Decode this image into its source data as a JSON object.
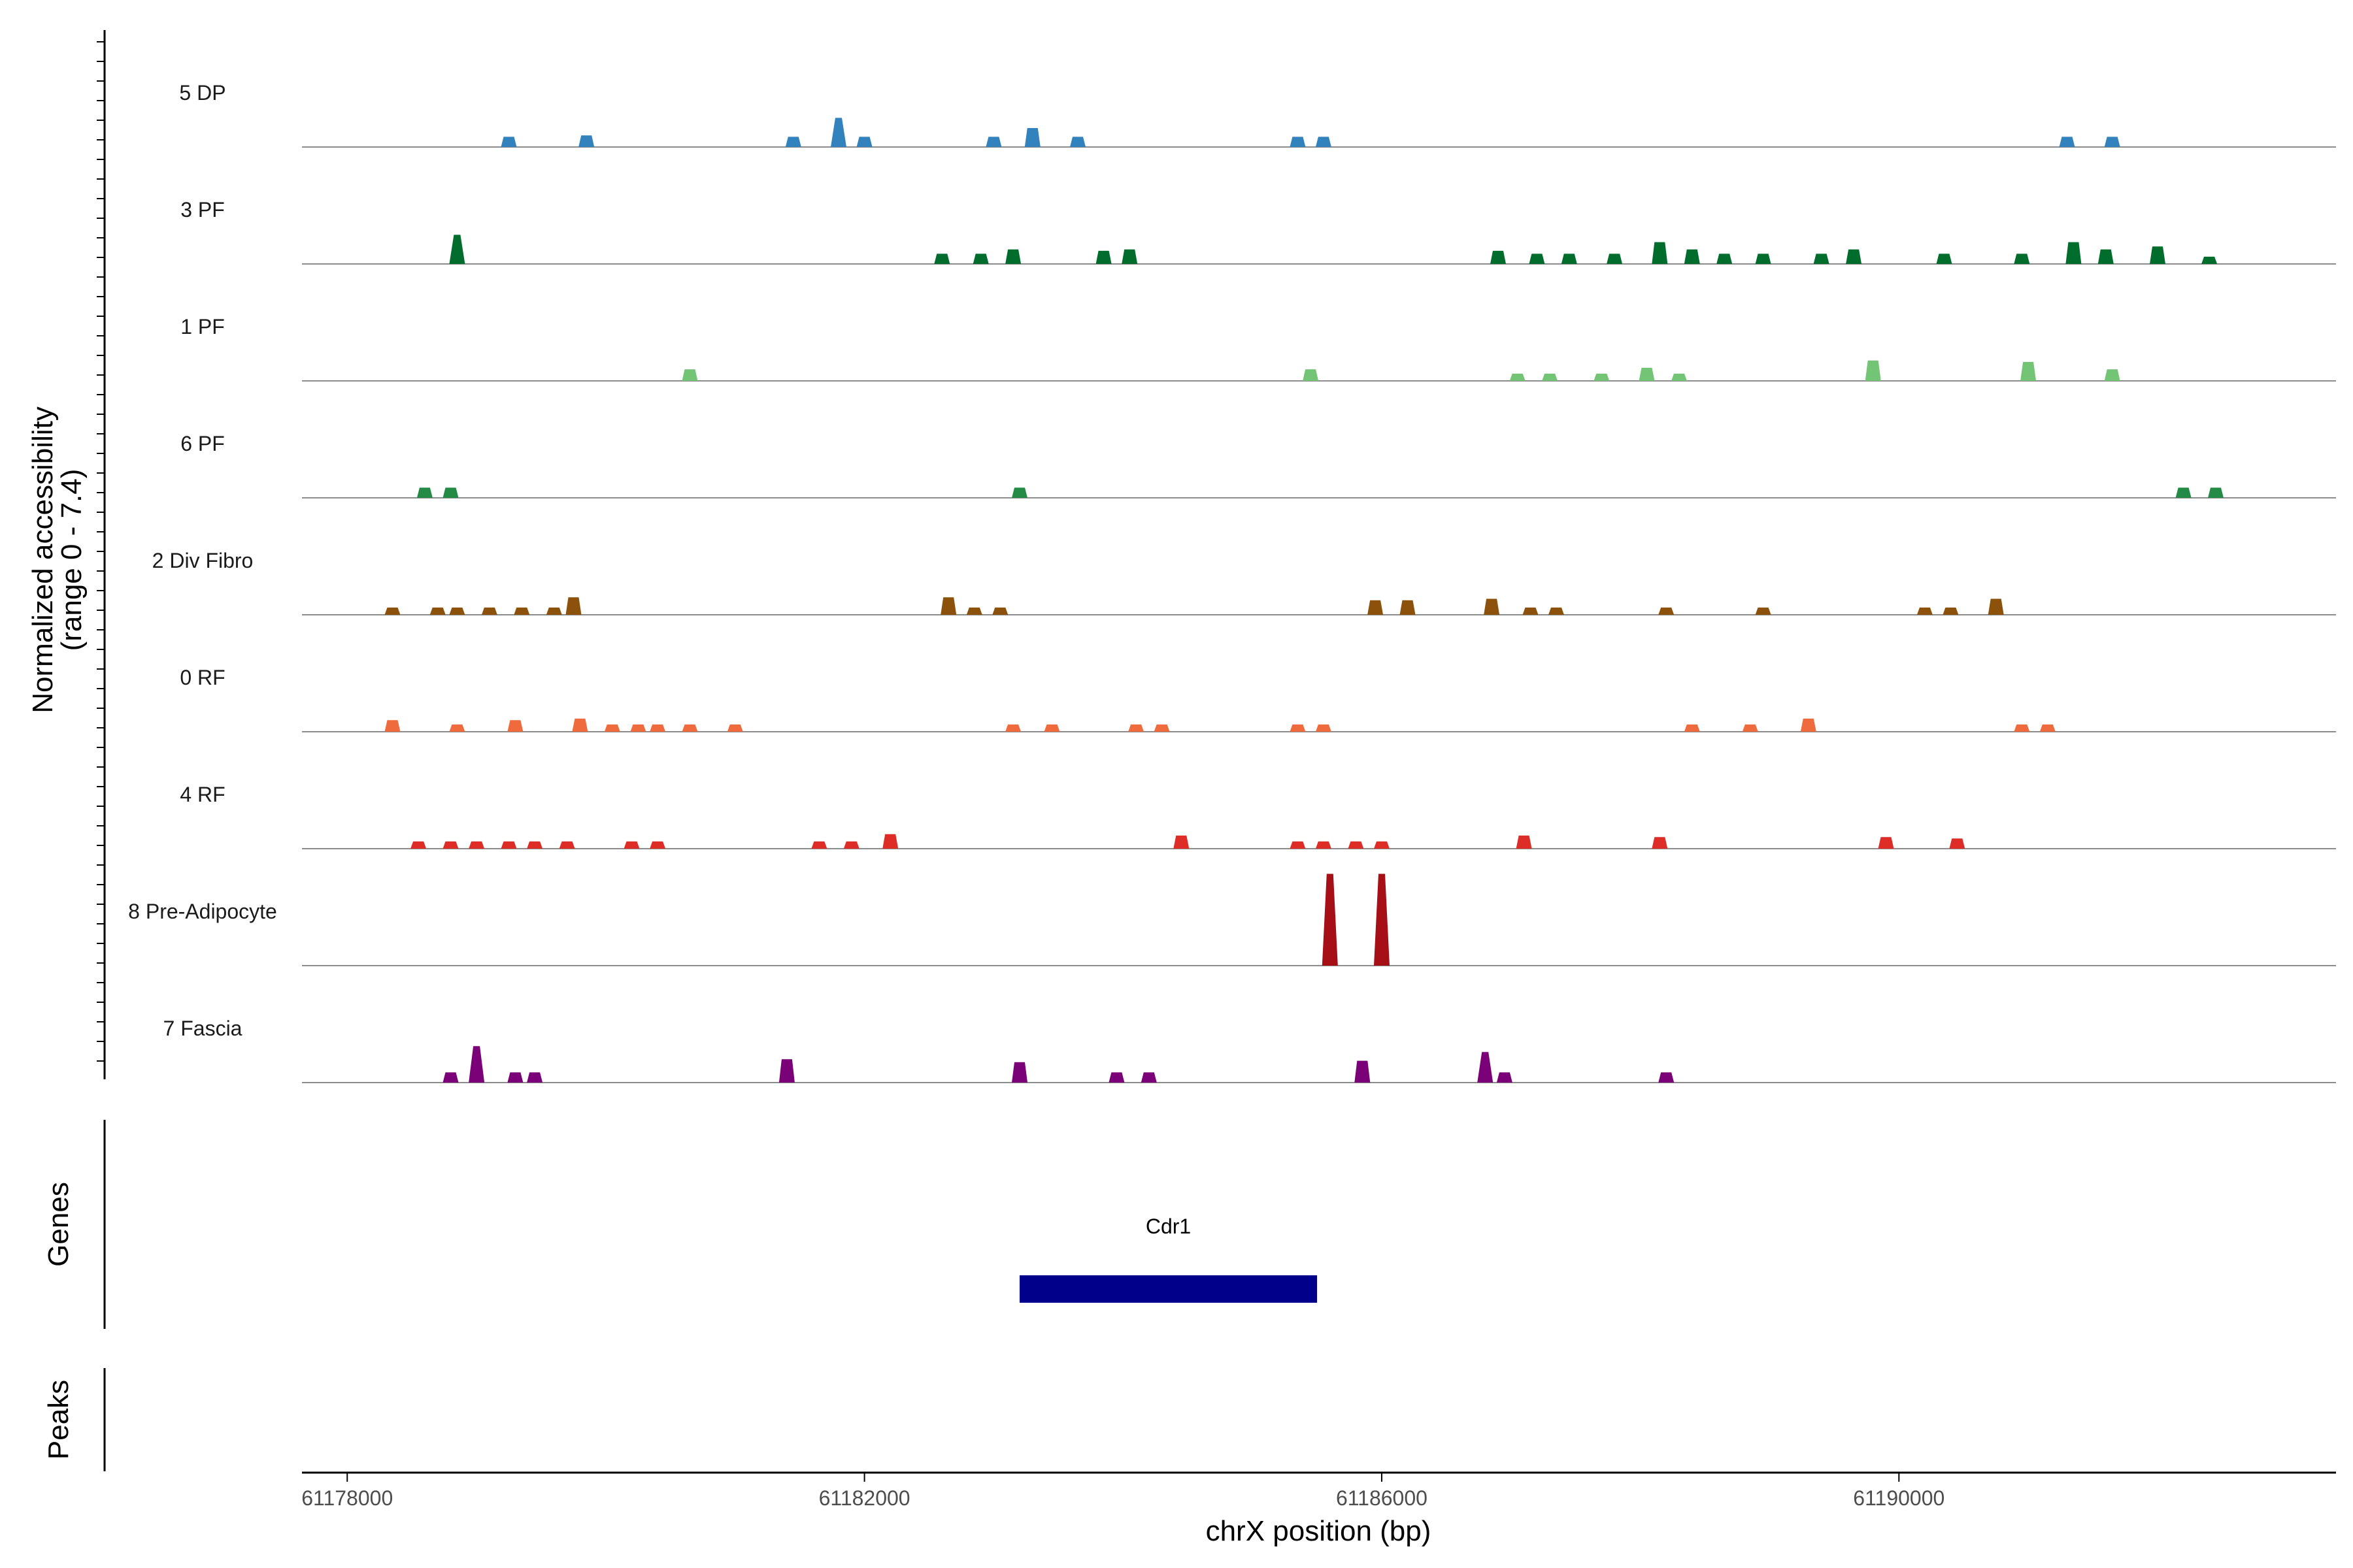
{
  "chart_data": {
    "type": "area",
    "title": "",
    "ylabel": "Normalized accessibility",
    "ylabel_range": "(range 0 - 7.4)",
    "ylim": [
      0,
      7.4
    ],
    "xlabel": "chrX position (bp)",
    "xlim": [
      61177650,
      61193380
    ],
    "xticks": [
      61178000,
      61182000,
      61186000,
      61190000
    ],
    "xtick_labels": [
      "61178000",
      "61182000",
      "61186000",
      "61190000"
    ],
    "panel_labels": {
      "genes": "Genes",
      "peaks": "Peaks"
    },
    "genes": [
      {
        "name": "Cdr1",
        "start": 61183200,
        "end": 61185500,
        "color": "#00008b"
      }
    ],
    "series": [
      {
        "name": "5 DP",
        "color": "#3182bd",
        "x": [
          61179250,
          61179850,
          61181450,
          61181800,
          61182000,
          61183000,
          61183300,
          61183650,
          61185350,
          61185550,
          61191300,
          61191650
        ],
        "values": [
          0.7,
          0.8,
          0.7,
          2.0,
          0.7,
          0.7,
          1.3,
          0.7,
          0.7,
          0.7,
          0.7,
          0.7
        ]
      },
      {
        "name": "3 PF",
        "color": "#006d2c",
        "x": [
          61178850,
          61182600,
          61182900,
          61183150,
          61183850,
          61184050,
          61186900,
          61187200,
          61187450,
          61187800,
          61188150,
          61188400,
          61188650,
          61188950,
          61189400,
          61189650,
          61190350,
          61190950,
          61191350,
          61191600,
          61192000,
          61192400
        ],
        "values": [
          2.0,
          0.7,
          0.7,
          1.0,
          0.9,
          1.0,
          0.9,
          0.7,
          0.7,
          0.7,
          1.5,
          1.0,
          0.7,
          0.7,
          0.7,
          1.0,
          0.7,
          0.7,
          1.5,
          1.0,
          1.2,
          0.5
        ]
      },
      {
        "name": "1 PF",
        "color": "#74c476",
        "x": [
          61180650,
          61185450,
          61187050,
          61187300,
          61187700,
          61188050,
          61188300,
          61189800,
          61191000,
          61191650
        ],
        "values": [
          0.8,
          0.8,
          0.5,
          0.5,
          0.5,
          0.9,
          0.5,
          1.4,
          1.3,
          0.8
        ]
      },
      {
        "name": "6 PF",
        "color": "#238b45",
        "x": [
          61178600,
          61178800,
          61183200,
          61192200,
          61192450
        ],
        "values": [
          0.7,
          0.7,
          0.7,
          0.7,
          0.7
        ]
      },
      {
        "name": "2 Div Fibro",
        "color": "#8c510a",
        "x": [
          61178350,
          61178700,
          61178850,
          61179100,
          61179350,
          61179600,
          61179750,
          61182650,
          61182850,
          61183050,
          61185950,
          61186200,
          61186850,
          61187150,
          61187350,
          61188200,
          61188950,
          61190200,
          61190400,
          61190750
        ],
        "values": [
          0.5,
          0.5,
          0.5,
          0.5,
          0.5,
          0.5,
          1.2,
          1.2,
          0.5,
          0.5,
          1.0,
          1.0,
          1.1,
          0.5,
          0.5,
          0.5,
          0.5,
          0.5,
          0.5,
          1.1
        ]
      },
      {
        "name": "0 RF",
        "color": "#ef6b3e",
        "x": [
          61178350,
          61178850,
          61179300,
          61179800,
          61180050,
          61180250,
          61180400,
          61180650,
          61181000,
          61183150,
          61183450,
          61184100,
          61184300,
          61185350,
          61185550,
          61188400,
          61188850,
          61189300,
          61190950,
          61191150
        ],
        "values": [
          0.8,
          0.5,
          0.8,
          0.9,
          0.5,
          0.5,
          0.5,
          0.5,
          0.5,
          0.5,
          0.5,
          0.5,
          0.5,
          0.5,
          0.5,
          0.5,
          0.5,
          0.9,
          0.5,
          0.5
        ]
      },
      {
        "name": "4 RF",
        "color": "#de2d26",
        "x": [
          61178550,
          61178800,
          61179000,
          61179250,
          61179450,
          61179700,
          61180200,
          61180400,
          61181650,
          61181900,
          61182200,
          61184450,
          61185350,
          61185550,
          61185800,
          61186000,
          61187100,
          61188150,
          61189900,
          61190450
        ],
        "values": [
          0.5,
          0.5,
          0.5,
          0.5,
          0.5,
          0.5,
          0.5,
          0.5,
          0.5,
          0.5,
          1.0,
          0.9,
          0.5,
          0.5,
          0.5,
          0.5,
          0.9,
          0.8,
          0.8,
          0.7
        ]
      },
      {
        "name": "8 Pre-Adipocyte",
        "color": "#a50f15",
        "x": [
          61185600,
          61186000
        ],
        "values": [
          6.3,
          6.3
        ]
      },
      {
        "name": "7 Fascia",
        "color": "#7a0177",
        "x": [
          61178800,
          61179000,
          61179300,
          61179450,
          61181400,
          61183200,
          61183950,
          61184200,
          61185850,
          61186800,
          61186950,
          61188200
        ],
        "values": [
          0.7,
          2.5,
          0.7,
          0.7,
          1.6,
          1.4,
          0.7,
          0.7,
          1.5,
          2.1,
          0.7,
          0.7
        ]
      }
    ]
  }
}
